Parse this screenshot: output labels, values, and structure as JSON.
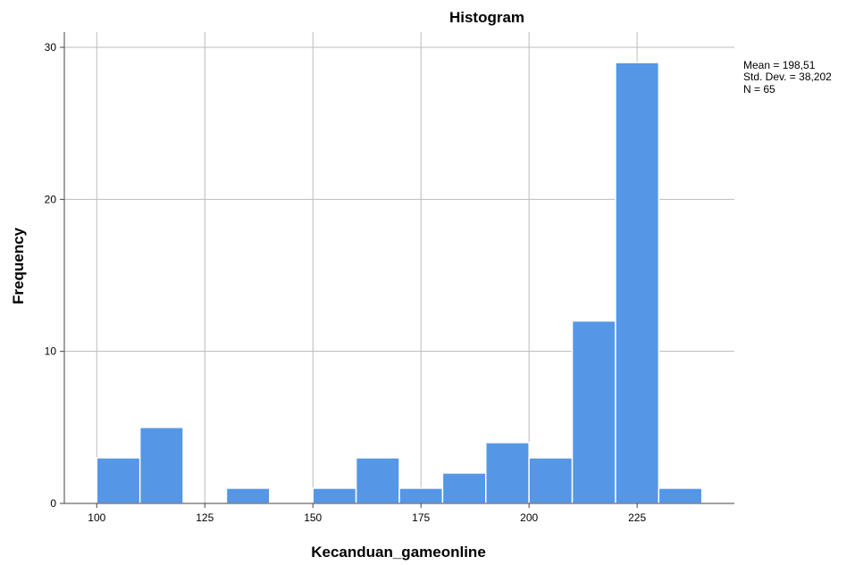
{
  "chart_data": {
    "type": "bar",
    "title": "Histogram",
    "xlabel": "Kecanduan_gameonline",
    "ylabel": "Frequency",
    "bins": [
      {
        "start": 100,
        "end": 110,
        "count": 3
      },
      {
        "start": 110,
        "end": 120,
        "count": 5
      },
      {
        "start": 120,
        "end": 130,
        "count": 0
      },
      {
        "start": 130,
        "end": 140,
        "count": 1
      },
      {
        "start": 140,
        "end": 150,
        "count": 0
      },
      {
        "start": 150,
        "end": 160,
        "count": 1
      },
      {
        "start": 160,
        "end": 170,
        "count": 3
      },
      {
        "start": 170,
        "end": 180,
        "count": 1
      },
      {
        "start": 180,
        "end": 190,
        "count": 2
      },
      {
        "start": 190,
        "end": 200,
        "count": 4
      },
      {
        "start": 200,
        "end": 210,
        "count": 3
      },
      {
        "start": 210,
        "end": 220,
        "count": 12
      },
      {
        "start": 220,
        "end": 230,
        "count": 29
      },
      {
        "start": 230,
        "end": 240,
        "count": 1
      }
    ],
    "xlim": [
      92.5,
      247.5
    ],
    "ylim": [
      0,
      31
    ],
    "x_ticks": [
      100,
      125,
      150,
      175,
      200,
      225
    ],
    "y_ticks": [
      0,
      10,
      20,
      30
    ],
    "grid": true,
    "bar_color": "#5596E6",
    "stats": {
      "mean": "Mean = 198,51",
      "std": "Std. Dev. = 38,202",
      "n": "N = 65"
    }
  }
}
